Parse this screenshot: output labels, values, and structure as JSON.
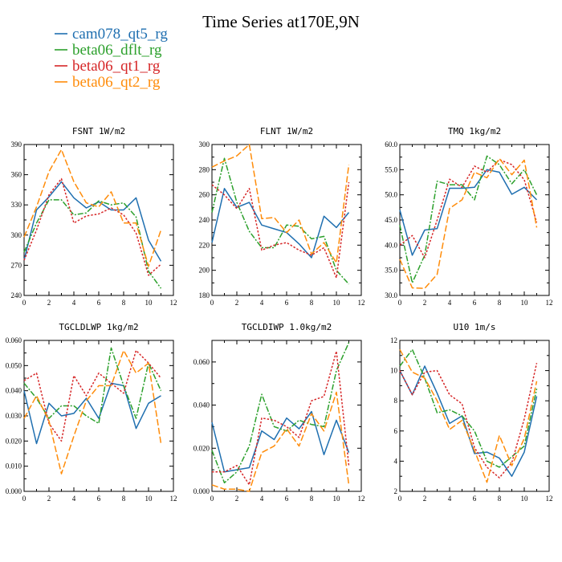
{
  "figure": {
    "title": "Time Series at170E,9N"
  },
  "chart_data": [
    {
      "type": "line",
      "title": "FSNT   1W/m2",
      "x": [
        0,
        1,
        2,
        3,
        4,
        5,
        6,
        7,
        8,
        9,
        10,
        11
      ],
      "xlim": [
        0,
        12
      ],
      "ylim": [
        240,
        390
      ],
      "yticks": [
        240,
        270,
        300,
        330,
        360,
        390
      ],
      "yticklabels": [
        "240",
        "270",
        "300",
        "330",
        "360",
        "390"
      ],
      "xticks": [
        0,
        2,
        4,
        6,
        8,
        10,
        12
      ],
      "xticklabels": [
        "0",
        "2",
        "4",
        "6",
        "8",
        "10",
        "12"
      ],
      "legend": "top-left",
      "series": [
        {
          "name": "cam078_qt5_rg",
          "values": [
            275,
            325,
            338,
            353,
            337,
            327,
            333,
            325,
            325,
            337,
            295,
            274
          ]
        },
        {
          "name": "beta06_dflt_rg",
          "values": [
            283,
            312,
            335,
            335,
            320,
            322,
            334,
            330,
            332,
            318,
            264,
            247
          ]
        },
        {
          "name": "beta06_qt1_rg",
          "values": [
            275,
            305,
            340,
            356,
            312,
            319,
            321,
            327,
            320,
            302,
            260,
            271
          ]
        },
        {
          "name": "beta06_qt2_rg",
          "values": [
            298,
            328,
            363,
            385,
            353,
            332,
            328,
            343,
            312,
            312,
            269,
            305
          ]
        }
      ]
    },
    {
      "type": "line",
      "title": "FLNT   1W/m2",
      "x": [
        0,
        1,
        2,
        3,
        4,
        5,
        6,
        7,
        8,
        9,
        10,
        11
      ],
      "xlim": [
        0,
        12
      ],
      "ylim": [
        180,
        300
      ],
      "yticks": [
        180,
        200,
        220,
        240,
        260,
        280,
        300
      ],
      "yticklabels": [
        "180",
        "200",
        "220",
        "240",
        "260",
        "280",
        "300"
      ],
      "xticks": [
        0,
        2,
        4,
        6,
        8,
        10,
        12
      ],
      "xticklabels": [
        "0",
        "2",
        "4",
        "6",
        "8",
        "10",
        "12"
      ],
      "series": [
        {
          "name": "cam078_qt5_rg",
          "values": [
            222,
            265,
            250,
            254,
            236,
            233,
            230,
            221,
            210,
            243,
            234,
            246
          ]
        },
        {
          "name": "beta06_dflt_rg",
          "values": [
            246,
            289,
            254,
            231,
            218,
            218,
            236,
            235,
            225,
            227,
            200,
            189
          ]
        },
        {
          "name": "beta06_qt1_rg",
          "values": [
            268,
            260,
            249,
            265,
            216,
            220,
            222,
            216,
            212,
            218,
            194,
            270
          ]
        },
        {
          "name": "beta06_qt2_rg",
          "values": [
            282,
            287,
            291,
            300,
            241,
            242,
            230,
            240,
            213,
            222,
            206,
            284
          ]
        }
      ]
    },
    {
      "type": "line",
      "title": "TMQ   1kg/m2",
      "x": [
        0,
        1,
        2,
        3,
        4,
        5,
        6,
        7,
        8,
        9,
        10,
        11
      ],
      "xlim": [
        0,
        12
      ],
      "ylim": [
        30,
        60
      ],
      "yticks": [
        30,
        35,
        40,
        45,
        50,
        55,
        60
      ],
      "yticklabels": [
        "30.0",
        "35.0",
        "40.0",
        "45.0",
        "50.0",
        "55.0",
        "60.0"
      ],
      "xticks": [
        0,
        2,
        4,
        6,
        8,
        10,
        12
      ],
      "xticklabels": [
        "0",
        "2",
        "4",
        "6",
        "8",
        "10",
        "12"
      ],
      "series": [
        {
          "name": "cam078_qt5_rg",
          "values": [
            47.0,
            38.0,
            43.0,
            43.3,
            51.3,
            51.3,
            51.5,
            55.0,
            54.5,
            50.1,
            51.5,
            49.0
          ]
        },
        {
          "name": "beta06_dflt_rg",
          "values": [
            44.0,
            32.5,
            38.0,
            52.7,
            52.0,
            52.0,
            49.0,
            57.7,
            56.0,
            52.2,
            55.0,
            50.0
          ]
        },
        {
          "name": "beta06_qt1_rg",
          "values": [
            40.0,
            41.9,
            37.5,
            45.0,
            53.1,
            51.5,
            55.7,
            54.5,
            57.0,
            56.0,
            53.0,
            44.5
          ]
        },
        {
          "name": "beta06_qt2_rg",
          "values": [
            37.2,
            31.5,
            31.4,
            34.2,
            47.3,
            49.0,
            54.5,
            53.4,
            57.2,
            54.0,
            56.9,
            43.5
          ]
        }
      ]
    },
    {
      "type": "line",
      "title": "TGCLDLWP   1kg/m2",
      "x": [
        0,
        1,
        2,
        3,
        4,
        5,
        6,
        7,
        8,
        9,
        10,
        11
      ],
      "xlim": [
        0,
        12
      ],
      "ylim": [
        0,
        0.06
      ],
      "yticks": [
        0,
        0.01,
        0.02,
        0.03,
        0.04,
        0.05,
        0.06
      ],
      "yticklabels": [
        "0.000",
        "0.010",
        "0.020",
        "0.030",
        "0.040",
        "0.050",
        "0.060"
      ],
      "xticks": [
        0,
        2,
        4,
        6,
        8,
        10,
        12
      ],
      "xticklabels": [
        "0",
        "2",
        "4",
        "6",
        "8",
        "10",
        "12"
      ],
      "series": [
        {
          "name": "cam078_qt5_rg",
          "values": [
            0.04,
            0.019,
            0.035,
            0.03,
            0.031,
            0.037,
            0.029,
            0.043,
            0.042,
            0.025,
            0.035,
            0.038
          ]
        },
        {
          "name": "beta06_dflt_rg",
          "values": [
            0.043,
            0.037,
            0.029,
            0.034,
            0.034,
            0.03,
            0.027,
            0.057,
            0.042,
            0.029,
            0.051,
            0.04
          ]
        },
        {
          "name": "beta06_qt1_rg",
          "values": [
            0.044,
            0.047,
            0.027,
            0.02,
            0.046,
            0.038,
            0.047,
            0.043,
            0.039,
            0.056,
            0.051,
            0.045
          ]
        },
        {
          "name": "beta06_qt2_rg",
          "values": [
            0.029,
            0.038,
            0.028,
            0.007,
            0.022,
            0.036,
            0.042,
            0.042,
            0.056,
            0.047,
            0.051,
            0.019
          ]
        }
      ]
    },
    {
      "type": "line",
      "title": "TGCLDIWP   1.0kg/m2",
      "x": [
        0,
        1,
        2,
        3,
        4,
        5,
        6,
        7,
        8,
        9,
        10,
        11
      ],
      "xlim": [
        0,
        12
      ],
      "ylim": [
        0,
        0.07
      ],
      "yticks": [
        0,
        0.02,
        0.04,
        0.06
      ],
      "yticklabels": [
        "0.000",
        "0.020",
        "0.040",
        "0.060"
      ],
      "xticks": [
        0,
        2,
        4,
        6,
        8,
        10,
        12
      ],
      "xticklabels": [
        "0",
        "2",
        "4",
        "6",
        "8",
        "10",
        "12"
      ],
      "series": [
        {
          "name": "cam078_qt5_rg",
          "values": [
            0.032,
            0.009,
            0.01,
            0.011,
            0.028,
            0.024,
            0.034,
            0.029,
            0.037,
            0.017,
            0.033,
            0.018
          ]
        },
        {
          "name": "beta06_dflt_rg",
          "values": [
            0.019,
            0.004,
            0.009,
            0.021,
            0.045,
            0.03,
            0.028,
            0.033,
            0.031,
            0.03,
            0.056,
            0.069
          ]
        },
        {
          "name": "beta06_qt1_rg",
          "values": [
            0.009,
            0.009,
            0.012,
            0.003,
            0.034,
            0.033,
            0.03,
            0.025,
            0.042,
            0.044,
            0.065,
            0.012
          ]
        },
        {
          "name": "beta06_qt2_rg",
          "values": [
            0.003,
            0.001,
            0.001,
            0.0,
            0.018,
            0.021,
            0.029,
            0.021,
            0.036,
            0.028,
            0.046,
            0.003
          ]
        }
      ]
    },
    {
      "type": "line",
      "title": "U10   1m/s",
      "x": [
        0,
        1,
        2,
        3,
        4,
        5,
        6,
        7,
        8,
        9,
        10,
        11
      ],
      "xlim": [
        0,
        12
      ],
      "ylim": [
        2,
        12
      ],
      "yticks": [
        2,
        4,
        6,
        8,
        10,
        12
      ],
      "yticklabels": [
        "2",
        "4",
        "6",
        "8",
        "10",
        "12"
      ],
      "xticks": [
        0,
        2,
        4,
        6,
        8,
        10,
        12
      ],
      "xticklabels": [
        "0",
        "2",
        "4",
        "6",
        "8",
        "10",
        "12"
      ],
      "series": [
        {
          "name": "cam078_qt5_rg",
          "values": [
            10.0,
            8.4,
            10.3,
            8.5,
            6.5,
            7.0,
            4.5,
            4.6,
            4.2,
            3.0,
            4.6,
            8.3
          ]
        },
        {
          "name": "beta06_dflt_rg",
          "values": [
            10.3,
            11.4,
            9.5,
            7.2,
            7.4,
            7.0,
            6.0,
            4.0,
            3.6,
            4.3,
            5.0,
            8.8
          ]
        },
        {
          "name": "beta06_qt1_rg",
          "values": [
            10.0,
            8.4,
            9.9,
            10.0,
            8.4,
            7.8,
            4.9,
            3.6,
            2.9,
            3.9,
            6.8,
            10.5
          ]
        },
        {
          "name": "beta06_qt2_rg",
          "values": [
            11.4,
            9.9,
            9.5,
            8.0,
            6.1,
            6.7,
            4.7,
            2.6,
            5.7,
            3.7,
            5.5,
            9.3
          ]
        }
      ]
    }
  ],
  "legend": [
    {
      "name": "cam078_qt5_rg",
      "color": "#1f6fb0"
    },
    {
      "name": "beta06_dflt_rg",
      "color": "#2ca02c"
    },
    {
      "name": "beta06_qt1_rg",
      "color": "#d62728"
    },
    {
      "name": "beta06_qt2_rg",
      "color": "#ff8c0a"
    }
  ]
}
